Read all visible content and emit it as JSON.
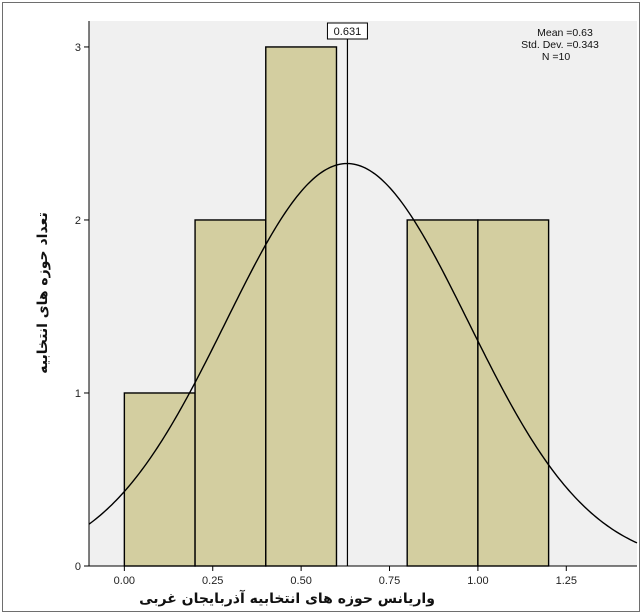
{
  "chart_data": {
    "type": "histogram",
    "title": "",
    "xlabel": "واریانس حوزه های  انتخابیه آذربایجان غربی",
    "ylabel": "تعداد حوزه های انتخابیه",
    "xlim": [
      -0.1,
      1.45
    ],
    "ylim": [
      0,
      3.15
    ],
    "x_ticks": [
      0.0,
      0.25,
      0.5,
      0.75,
      1.0,
      1.25
    ],
    "x_tick_labels": [
      "0.00",
      "0.25",
      "0.50",
      "0.75",
      "1.00",
      "1.25"
    ],
    "y_ticks": [
      0,
      1,
      2,
      3
    ],
    "y_tick_labels": [
      "0",
      "1",
      "2",
      "3"
    ],
    "bins": [
      {
        "start": 0.0,
        "end": 0.2,
        "count": 1
      },
      {
        "start": 0.2,
        "end": 0.4,
        "count": 2
      },
      {
        "start": 0.4,
        "end": 0.6,
        "count": 3
      },
      {
        "start": 0.6,
        "end": 0.8,
        "count": 0
      },
      {
        "start": 0.8,
        "end": 1.0,
        "count": 2
      },
      {
        "start": 1.0,
        "end": 1.2,
        "count": 2
      }
    ],
    "normal_curve": {
      "mean": 0.63,
      "sd": 0.343,
      "n": 10,
      "bin_width": 0.2
    },
    "reference_line": {
      "x": 0.631,
      "label": "0.631"
    },
    "stats_box": {
      "mean_line": "Mean =0.63",
      "sd_line": "Std. Dev. =0.343",
      "n_line": "N =10"
    },
    "colors": {
      "plot_background": "#f0f0f0",
      "bar_fill": "#d3cea0",
      "bar_stroke": "#000000",
      "curve": "#000000"
    },
    "grid": false
  }
}
